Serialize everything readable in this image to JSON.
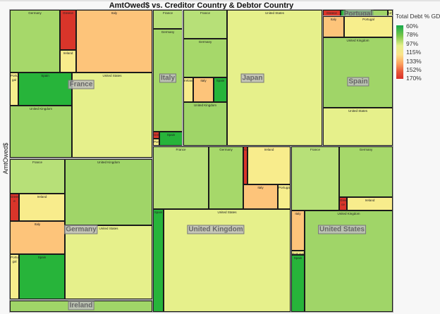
{
  "chart_data": {
    "type": "treemap",
    "title": "AmtOwed$ vs. Creditor Country & Debtor Country",
    "size_label": "AmtOwed$",
    "color_label": "Total Debt % GDP",
    "legend": {
      "title": "Total Debt % GDP",
      "ticks": [
        "60%",
        "78%",
        "97%",
        "115%",
        "133%",
        "152%",
        "170%"
      ],
      "placement": "right"
    },
    "debtor_colors": {
      "Germany": "#a6d86a",
      "France": "#b7e078",
      "Greece": "#d9352a",
      "Ireland": "#f8ec8c",
      "Italy": "#fdc47a",
      "Portugal": "#f7ee8c",
      "Spain": "#27b43a",
      "United Kingdom": "#a0d568",
      "United States": "#e6f08b"
    },
    "groups": [
      {
        "creditor": "France",
        "cells": [
          {
            "debtor": "Germany",
            "label": "Germany"
          },
          {
            "debtor": "Greece",
            "label": "Greece"
          },
          {
            "debtor": "Ireland",
            "label": "Ireland"
          },
          {
            "debtor": "Italy",
            "label": "Italy"
          },
          {
            "debtor": "Portugal",
            "label": "Portu gal"
          },
          {
            "debtor": "Spain",
            "label": "Spain"
          },
          {
            "debtor": "United Kingdom",
            "label": "United Kingdom"
          },
          {
            "debtor": "United States",
            "label": "United States"
          }
        ]
      },
      {
        "creditor": "Italy",
        "cells": [
          {
            "debtor": "France",
            "label": "France"
          },
          {
            "debtor": "Germany",
            "label": "Germany"
          },
          {
            "debtor": "Greece",
            "label": "Gre"
          },
          {
            "debtor": "Portugal",
            "label": "Port"
          },
          {
            "debtor": "Spain",
            "label": "Spain"
          }
        ]
      },
      {
        "creditor": "Japan",
        "cells": [
          {
            "debtor": "France",
            "label": "France"
          },
          {
            "debtor": "Germany",
            "label": "Germany"
          },
          {
            "debtor": "Ireland",
            "label": "Ireland"
          },
          {
            "debtor": "Italy",
            "label": "Italy"
          },
          {
            "debtor": "Spain",
            "label": "Spain"
          },
          {
            "debtor": "United Kingdom",
            "label": "United Kingdom"
          },
          {
            "debtor": "United States",
            "label": "United States"
          }
        ]
      },
      {
        "creditor": "Portugal",
        "cells": [
          {
            "debtor": "Greece",
            "label": "Greece"
          },
          {
            "debtor": "Spain",
            "label": ""
          },
          {
            "debtor": "United Kingdom",
            "label": ""
          },
          {
            "debtor": "United States",
            "label": "Uni"
          }
        ]
      },
      {
        "creditor": "Spain",
        "cells": [
          {
            "debtor": "Italy",
            "label": "Italy"
          },
          {
            "debtor": "Portugal",
            "label": "Portugal"
          },
          {
            "debtor": "United Kingdom",
            "label": "United Kingdom"
          },
          {
            "debtor": "United States",
            "label": "United States"
          }
        ]
      },
      {
        "creditor": "Germany",
        "cells": [
          {
            "debtor": "France",
            "label": "France"
          },
          {
            "debtor": "United Kingdom",
            "label": "United Kingdom"
          },
          {
            "debtor": "Greece",
            "label": "Greec e"
          },
          {
            "debtor": "Ireland",
            "label": "Ireland"
          },
          {
            "debtor": "Italy",
            "label": "Italy"
          },
          {
            "debtor": "Portugal",
            "label": "Portu gal"
          },
          {
            "debtor": "Spain",
            "label": "Spain"
          },
          {
            "debtor": "United States",
            "label": "United States"
          }
        ]
      },
      {
        "creditor": "Ireland",
        "cells": [
          {
            "debtor": "United Kingdom",
            "label": ""
          }
        ]
      },
      {
        "creditor": "United Kingdom",
        "cells": [
          {
            "debtor": "France",
            "label": "France"
          },
          {
            "debtor": "Germany",
            "label": "Germany"
          },
          {
            "debtor": "Greece",
            "label": "G"
          },
          {
            "debtor": "Ireland",
            "label": "Ireland"
          },
          {
            "debtor": "Italy",
            "label": "Italy"
          },
          {
            "debtor": "Portugal",
            "label": "Portugal"
          },
          {
            "debtor": "Spain",
            "label": "Spain"
          },
          {
            "debtor": "United States",
            "label": "United States"
          }
        ]
      },
      {
        "creditor": "United States",
        "cells": [
          {
            "debtor": "France",
            "label": "France"
          },
          {
            "debtor": "Germany",
            "label": "Germany"
          },
          {
            "debtor": "Greece",
            "label": "Gree ce"
          },
          {
            "debtor": "Ireland",
            "label": "Ireland"
          },
          {
            "debtor": "Italy",
            "label": "Italy"
          },
          {
            "debtor": "Portugal",
            "label": "Portugal"
          },
          {
            "debtor": "Spain",
            "label": "Spain"
          },
          {
            "debtor": "United Kingdom",
            "label": "United Kingdom"
          }
        ]
      }
    ]
  }
}
